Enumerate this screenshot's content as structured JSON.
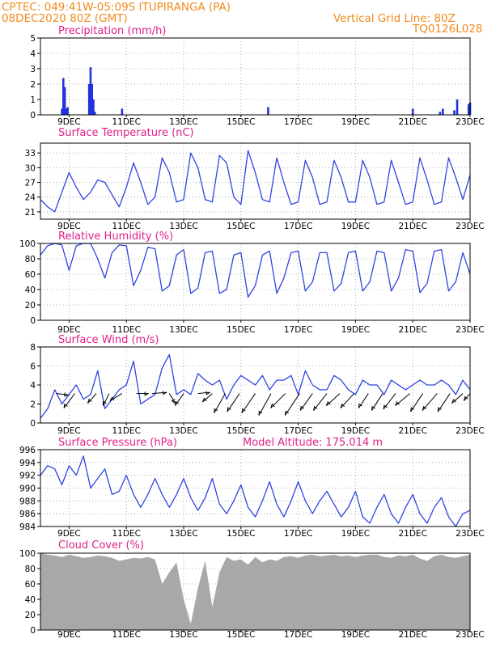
{
  "header": {
    "line1": "CPTEC:   049:41W-05:09S   ITUPIRANGA (PA)",
    "line2": "08DEC2020 80Z (GMT)",
    "grid_note": "Vertical Grid Line: 80Z",
    "code": "TQ0126L028"
  },
  "colors": {
    "header": "#f08a1c",
    "panel_title": "#e0208a",
    "series_line": "#2f45e0",
    "precip_bar": "#2233dd",
    "cloud_fill": "#a8a8a8",
    "wind_arrow": "#000000"
  },
  "x_axis": {
    "range_days": [
      8.0,
      23.0
    ],
    "tick_days": [
      9,
      11,
      13,
      15,
      17,
      19,
      21,
      23
    ],
    "tick_labels": [
      "9DEC",
      "11DEC",
      "13DEC",
      "15DEC",
      "17DEC",
      "19DEC",
      "21DEC",
      "23DEC"
    ]
  },
  "chart_data": [
    {
      "type": "bar",
      "title": "Precipitation (mm/h)",
      "ylim": [
        0,
        5
      ],
      "yticks": [
        0,
        1,
        2,
        3,
        4,
        5
      ],
      "x": [
        8.75,
        8.8,
        8.85,
        8.9,
        8.95,
        9.7,
        9.75,
        9.8,
        9.85,
        9.9,
        10.85,
        15.95,
        21.0,
        21.95,
        22.05,
        22.45,
        22.55,
        22.95,
        23.0
      ],
      "values": [
        0.4,
        2.4,
        1.8,
        0.4,
        0.5,
        2.0,
        3.1,
        2.0,
        1.0,
        0.2,
        0.4,
        0.5,
        0.4,
        0.2,
        0.4,
        0.3,
        1.0,
        0.7,
        0.8
      ]
    },
    {
      "type": "line",
      "title": "Surface Temperature (nC)",
      "ylim": [
        19.5,
        35
      ],
      "yticks": [
        21,
        24,
        27,
        30,
        33
      ],
      "x": [
        8.0,
        8.25,
        8.5,
        8.75,
        9.0,
        9.25,
        9.5,
        9.75,
        10.0,
        10.25,
        10.5,
        10.75,
        11.0,
        11.25,
        11.5,
        11.75,
        12.0,
        12.25,
        12.5,
        12.75,
        13.0,
        13.25,
        13.5,
        13.75,
        14.0,
        14.25,
        14.5,
        14.75,
        15.0,
        15.25,
        15.5,
        15.75,
        16.0,
        16.25,
        16.5,
        16.75,
        17.0,
        17.25,
        17.5,
        17.75,
        18.0,
        18.25,
        18.5,
        18.75,
        19.0,
        19.25,
        19.5,
        19.75,
        20.0,
        20.25,
        20.5,
        20.75,
        21.0,
        21.25,
        21.5,
        21.75,
        22.0,
        22.25,
        22.5,
        22.75,
        23.0
      ],
      "values": [
        23.5,
        22.0,
        21.0,
        25.0,
        29.0,
        26.0,
        23.5,
        25.0,
        27.5,
        27.0,
        24.5,
        22.0,
        26.0,
        31.0,
        27.0,
        22.5,
        24.0,
        32.0,
        29.0,
        23.0,
        23.5,
        33.0,
        30.0,
        23.5,
        23.0,
        32.5,
        31.0,
        24.0,
        22.5,
        33.5,
        29.0,
        23.5,
        23.0,
        32.0,
        27.0,
        22.5,
        23.0,
        31.5,
        28.0,
        22.5,
        23.0,
        31.5,
        28.0,
        23.0,
        23.0,
        31.5,
        28.0,
        22.5,
        23.0,
        31.5,
        27.0,
        22.5,
        23.0,
        32.0,
        27.5,
        22.5,
        23.0,
        32.0,
        28.0,
        23.5,
        28.5
      ]
    },
    {
      "type": "line",
      "title": "Relative Humidity (%)",
      "ylim": [
        0,
        100
      ],
      "yticks": [
        0,
        20,
        40,
        60,
        80,
        100
      ],
      "x": [
        8.0,
        8.25,
        8.5,
        8.75,
        9.0,
        9.25,
        9.5,
        9.75,
        10.0,
        10.25,
        10.5,
        10.75,
        11.0,
        11.25,
        11.5,
        11.75,
        12.0,
        12.25,
        12.5,
        12.75,
        13.0,
        13.25,
        13.5,
        13.75,
        14.0,
        14.25,
        14.5,
        14.75,
        15.0,
        15.25,
        15.5,
        15.75,
        16.0,
        16.25,
        16.5,
        16.75,
        17.0,
        17.25,
        17.5,
        17.75,
        18.0,
        18.25,
        18.5,
        18.75,
        19.0,
        19.25,
        19.5,
        19.75,
        20.0,
        20.25,
        20.5,
        20.75,
        21.0,
        21.25,
        21.5,
        21.75,
        22.0,
        22.25,
        22.5,
        22.75,
        23.0
      ],
      "values": [
        85,
        97,
        100,
        98,
        65,
        97,
        100,
        100,
        80,
        55,
        88,
        98,
        97,
        45,
        65,
        95,
        93,
        38,
        45,
        85,
        92,
        35,
        42,
        88,
        90,
        35,
        40,
        85,
        88,
        30,
        45,
        85,
        90,
        35,
        55,
        88,
        90,
        38,
        50,
        88,
        88,
        38,
        48,
        88,
        90,
        38,
        50,
        90,
        88,
        38,
        55,
        92,
        90,
        36,
        48,
        90,
        92,
        38,
        50,
        88,
        60
      ]
    },
    {
      "type": "line",
      "title": "Surface Wind (m/s)",
      "ylim": [
        0,
        8
      ],
      "yticks": [
        0,
        2,
        4,
        6,
        8
      ],
      "x": [
        8.0,
        8.25,
        8.5,
        8.75,
        9.0,
        9.25,
        9.5,
        9.75,
        10.0,
        10.25,
        10.5,
        10.75,
        11.0,
        11.25,
        11.5,
        11.75,
        12.0,
        12.25,
        12.5,
        12.75,
        13.0,
        13.25,
        13.5,
        13.75,
        14.0,
        14.25,
        14.5,
        14.75,
        15.0,
        15.25,
        15.5,
        15.75,
        16.0,
        16.25,
        16.5,
        16.75,
        17.0,
        17.25,
        17.5,
        17.75,
        18.0,
        18.25,
        18.5,
        18.75,
        19.0,
        19.25,
        19.5,
        19.75,
        20.0,
        20.25,
        20.5,
        20.75,
        21.0,
        21.25,
        21.5,
        21.75,
        22.0,
        22.25,
        22.5,
        22.75,
        23.0
      ],
      "values": [
        0.5,
        1.5,
        3.5,
        2.0,
        3.0,
        4.0,
        2.5,
        3.0,
        5.5,
        1.5,
        2.5,
        3.5,
        4.0,
        6.5,
        2.0,
        2.5,
        3.0,
        5.8,
        7.2,
        3.0,
        3.5,
        3.0,
        5.2,
        4.5,
        4.0,
        4.5,
        2.5,
        4.0,
        5.0,
        4.5,
        4.0,
        5.0,
        3.5,
        4.5,
        4.5,
        5.0,
        3.0,
        5.5,
        4.0,
        3.5,
        3.5,
        5.0,
        4.5,
        3.5,
        3.0,
        4.5,
        4.0,
        4.0,
        3.0,
        4.5,
        4.0,
        3.5,
        4.0,
        4.5,
        4.0,
        4.0,
        4.5,
        4.0,
        3.0,
        4.5,
        3.5
      ],
      "arrows": {
        "description": "wind direction arrows",
        "x": [
          8.55,
          9.2,
          9.95,
          10.4,
          10.85,
          11.35,
          11.9,
          12.5,
          13.0,
          13.5,
          14.0,
          14.45,
          14.95,
          15.5,
          16.05,
          16.55,
          17.05,
          17.5,
          18.0,
          18.45,
          18.95,
          19.45,
          19.95,
          20.4,
          20.9,
          21.35,
          21.85,
          22.3,
          22.75,
          23.0
        ],
        "u": [
          1.0,
          -0.9,
          -0.7,
          -0.5,
          -1.0,
          1.0,
          1.2,
          0.5,
          -0.7,
          1.0,
          -0.8,
          -0.9,
          -1.0,
          -1.1,
          -1.0,
          -1.2,
          -1.2,
          -1.0,
          -1.1,
          -1.1,
          -1.1,
          -0.8,
          -0.9,
          -1.0,
          -1.2,
          -1.0,
          -1.2,
          -1.0,
          -0.9,
          -0.5
        ],
        "v": [
          -0.1,
          -1.2,
          -0.8,
          -1.0,
          -0.6,
          0.0,
          0.1,
          -0.8,
          -1.0,
          0.1,
          -0.7,
          -1.6,
          -1.5,
          -1.6,
          -1.8,
          -1.2,
          -1.8,
          -1.4,
          -1.4,
          -1.0,
          -1.2,
          -1.2,
          -1.4,
          -1.3,
          -1.0,
          -1.5,
          -1.4,
          -1.5,
          -0.8,
          -0.6
        ]
      }
    },
    {
      "type": "line",
      "title": "Surface Pressure (hPa)",
      "annotation": "Model Altitude: 175.014 m",
      "ylim": [
        984,
        996
      ],
      "yticks": [
        984,
        986,
        988,
        990,
        992,
        994,
        996
      ],
      "x": [
        8.0,
        8.25,
        8.5,
        8.75,
        9.0,
        9.25,
        9.5,
        9.75,
        10.0,
        10.25,
        10.5,
        10.75,
        11.0,
        11.25,
        11.5,
        11.75,
        12.0,
        12.25,
        12.5,
        12.75,
        13.0,
        13.25,
        13.5,
        13.75,
        14.0,
        14.25,
        14.5,
        14.75,
        15.0,
        15.25,
        15.5,
        15.75,
        16.0,
        16.25,
        16.5,
        16.75,
        17.0,
        17.25,
        17.5,
        17.75,
        18.0,
        18.25,
        18.5,
        18.75,
        19.0,
        19.25,
        19.5,
        19.75,
        20.0,
        20.25,
        20.5,
        20.75,
        21.0,
        21.25,
        21.5,
        21.75,
        22.0,
        22.25,
        22.5,
        22.75,
        23.0
      ],
      "values": [
        992.0,
        993.5,
        993.0,
        990.5,
        993.5,
        992.0,
        995.0,
        990.0,
        991.5,
        993.0,
        989.0,
        989.5,
        992.0,
        989.0,
        987.0,
        989.0,
        991.5,
        989.0,
        987.0,
        989.0,
        991.5,
        988.5,
        986.5,
        988.5,
        991.5,
        987.5,
        986.0,
        988.0,
        990.5,
        987.0,
        985.5,
        988.0,
        991.0,
        987.5,
        985.5,
        988.0,
        991.0,
        988.0,
        986.0,
        988.0,
        989.5,
        987.5,
        985.5,
        987.0,
        989.5,
        985.5,
        984.5,
        987.0,
        989.0,
        986.0,
        984.5,
        987.0,
        989.0,
        986.0,
        984.5,
        987.0,
        988.5,
        985.5,
        984.0,
        986.0,
        986.5
      ]
    },
    {
      "type": "area",
      "title": "Cloud Cover (%)",
      "ylim": [
        0,
        100
      ],
      "yticks": [
        0,
        20,
        40,
        60,
        80,
        100
      ],
      "x": [
        8.0,
        8.25,
        8.5,
        8.75,
        9.0,
        9.25,
        9.5,
        9.75,
        10.0,
        10.25,
        10.5,
        10.75,
        11.0,
        11.25,
        11.5,
        11.75,
        12.0,
        12.25,
        12.5,
        12.75,
        13.0,
        13.25,
        13.5,
        13.75,
        14.0,
        14.25,
        14.5,
        14.75,
        15.0,
        15.25,
        15.5,
        15.75,
        16.0,
        16.25,
        16.5,
        16.75,
        17.0,
        17.25,
        17.5,
        17.75,
        18.0,
        18.25,
        18.5,
        18.75,
        19.0,
        19.25,
        19.5,
        19.75,
        20.0,
        20.25,
        20.5,
        20.75,
        21.0,
        21.25,
        21.5,
        21.75,
        22.0,
        22.25,
        22.5,
        22.75,
        23.0
      ],
      "values": [
        100,
        98,
        97,
        95,
        98,
        96,
        94,
        95,
        97,
        96,
        94,
        90,
        92,
        94,
        93,
        95,
        92,
        60,
        75,
        88,
        40,
        8,
        55,
        90,
        30,
        75,
        95,
        90,
        92,
        85,
        95,
        88,
        92,
        90,
        95,
        96,
        94,
        97,
        98,
        96,
        97,
        98,
        96,
        97,
        95,
        97,
        98,
        98,
        95,
        94,
        97,
        96,
        98,
        93,
        90,
        96,
        98,
        95,
        94,
        96,
        98
      ]
    }
  ]
}
